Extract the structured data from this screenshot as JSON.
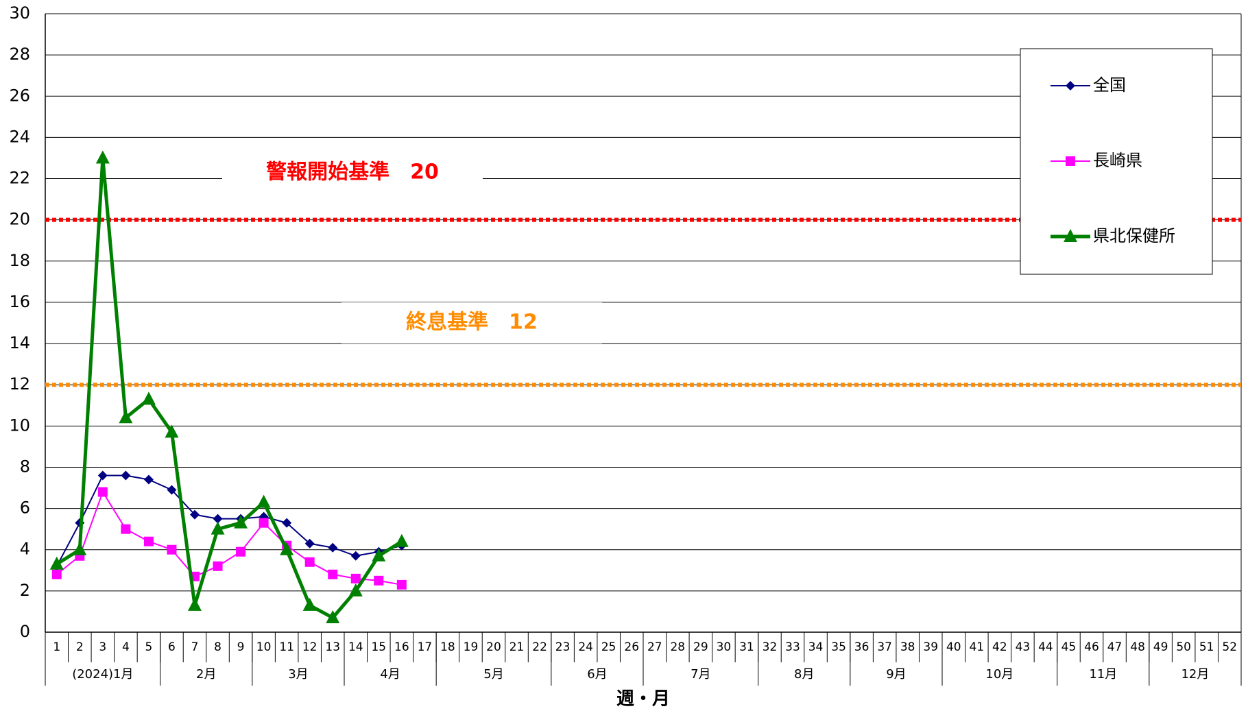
{
  "chart_data": {
    "type": "line",
    "x_label": "週・月",
    "categories": [
      "1",
      "2",
      "3",
      "4",
      "5",
      "6",
      "7",
      "8",
      "9",
      "10",
      "11",
      "12",
      "13",
      "14",
      "15",
      "16",
      "17",
      "18",
      "19",
      "20",
      "21",
      "22",
      "23",
      "24",
      "25",
      "26",
      "27",
      "28",
      "29",
      "30",
      "31",
      "32",
      "33",
      "34",
      "35",
      "36",
      "37",
      "38",
      "39",
      "40",
      "41",
      "42",
      "43",
      "44",
      "45",
      "46",
      "47",
      "48",
      "49",
      "50",
      "51",
      "52"
    ],
    "month_groups": [
      {
        "label": "(2024)1月",
        "span": 5
      },
      {
        "label": "2月",
        "span": 4
      },
      {
        "label": "3月",
        "span": 4
      },
      {
        "label": "4月",
        "span": 4
      },
      {
        "label": "5月",
        "span": 5
      },
      {
        "label": "6月",
        "span": 4
      },
      {
        "label": "7月",
        "span": 5
      },
      {
        "label": "8月",
        "span": 4
      },
      {
        "label": "9月",
        "span": 4
      },
      {
        "label": "10月",
        "span": 5
      },
      {
        "label": "11月",
        "span": 4
      },
      {
        "label": "12月",
        "span": 4
      }
    ],
    "series": [
      {
        "name": "全国",
        "color": "#000080",
        "marker": "diamond",
        "values": [
          3.2,
          5.3,
          7.6,
          7.6,
          7.4,
          6.9,
          5.7,
          5.5,
          5.5,
          5.6,
          5.3,
          4.3,
          4.1,
          3.7,
          3.9,
          4.2,
          null,
          null,
          null,
          null,
          null,
          null,
          null,
          null,
          null,
          null,
          null,
          null,
          null,
          null,
          null,
          null,
          null,
          null,
          null,
          null,
          null,
          null,
          null,
          null,
          null,
          null,
          null,
          null,
          null,
          null,
          null,
          null,
          null,
          null,
          null,
          null
        ]
      },
      {
        "name": "長崎県",
        "color": "#ff00ff",
        "marker": "square",
        "values": [
          2.8,
          3.7,
          6.8,
          5.0,
          4.4,
          4.0,
          2.7,
          3.2,
          3.9,
          5.3,
          4.2,
          3.4,
          2.8,
          2.6,
          2.5,
          2.3,
          null,
          null,
          null,
          null,
          null,
          null,
          null,
          null,
          null,
          null,
          null,
          null,
          null,
          null,
          null,
          null,
          null,
          null,
          null,
          null,
          null,
          null,
          null,
          null,
          null,
          null,
          null,
          null,
          null,
          null,
          null,
          null,
          null,
          null,
          null,
          null
        ]
      },
      {
        "name": "県北保健所",
        "color": "#008000",
        "marker": "triangle",
        "values": [
          3.3,
          4.0,
          23.0,
          10.4,
          11.3,
          9.7,
          1.3,
          5.0,
          5.3,
          6.3,
          4.0,
          1.3,
          0.7,
          2.0,
          3.7,
          4.4,
          null,
          null,
          null,
          null,
          null,
          null,
          null,
          null,
          null,
          null,
          null,
          null,
          null,
          null,
          null,
          null,
          null,
          null,
          null,
          null,
          null,
          null,
          null,
          null,
          null,
          null,
          null,
          null,
          null,
          null,
          null,
          null,
          null,
          null,
          null,
          null
        ]
      }
    ],
    "reference_lines": [
      {
        "value": 20,
        "color": "#ff0000",
        "label": "警報開始基準　20"
      },
      {
        "value": 12,
        "color": "#ff8c00",
        "label": "終息基準　12"
      }
    ],
    "ylim": [
      0,
      30
    ],
    "yticks": [
      0,
      2,
      4,
      6,
      8,
      10,
      12,
      14,
      16,
      18,
      20,
      22,
      24,
      26,
      28,
      30
    ],
    "grid": true,
    "legend": "upper right"
  }
}
